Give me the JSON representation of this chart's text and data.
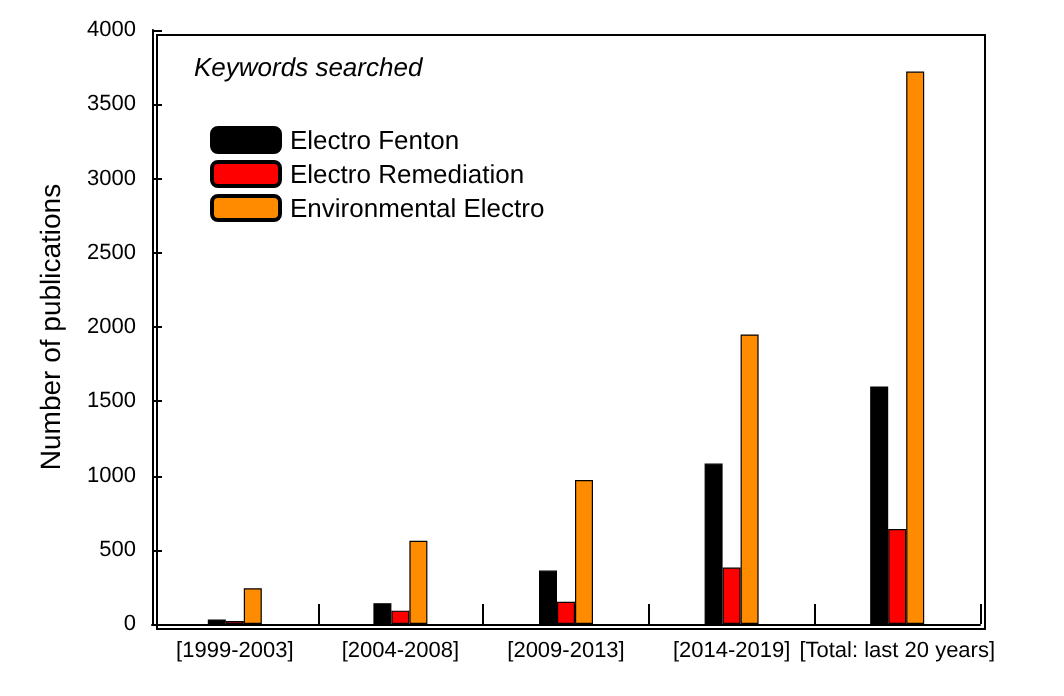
{
  "chart_data": {
    "type": "bar",
    "title": "Keywords searched",
    "ylabel": "Number of publications",
    "categories": [
      "[1999-2003]",
      "[2004-2008]",
      "[2009-2013]",
      "[2014-2019]",
      "[Total: last 20 years]"
    ],
    "series": [
      {
        "name": "Electro Fenton",
        "color": "#000000",
        "values": [
          30,
          140,
          360,
          1080,
          1600
        ]
      },
      {
        "name": "Electro Remediation",
        "color": "#ff0000",
        "values": [
          20,
          90,
          150,
          380,
          640
        ]
      },
      {
        "name": "Environmental Electro",
        "color": "#ff8c00",
        "values": [
          240,
          560,
          970,
          1950,
          3720
        ]
      }
    ],
    "ylim": [
      0,
      4000
    ],
    "yticks": [
      0,
      500,
      1000,
      1500,
      2000,
      2500,
      3000,
      3500,
      4000
    ],
    "grid": false,
    "legend": "top left"
  }
}
